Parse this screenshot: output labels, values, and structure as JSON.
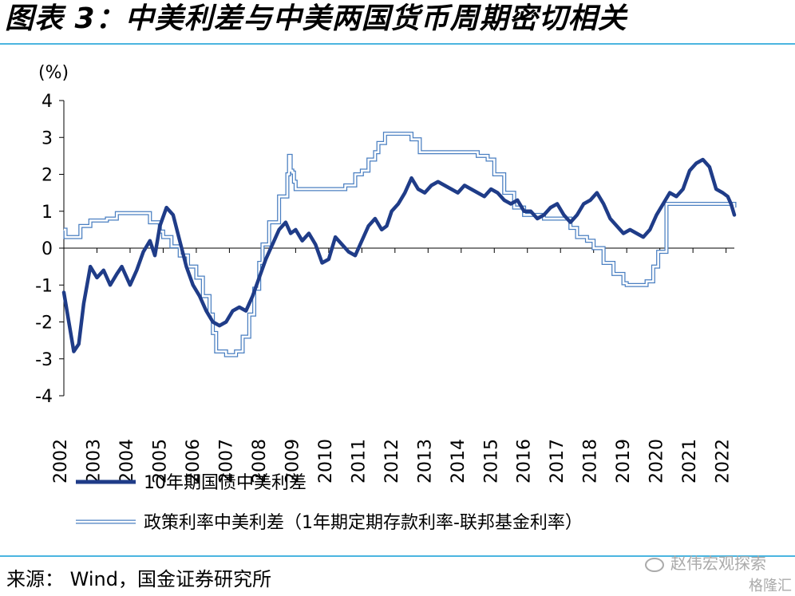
{
  "figure": {
    "title": "图表 3：中美利差与中美两国货币周期密切相关",
    "source": "来源：  Wind，国金证券研究所",
    "watermark": "赵伟宏观探索",
    "watermark2": "格隆汇"
  },
  "colors": {
    "rule": "#4bb5e0",
    "axis": "#000000",
    "bond_line": "#1f3c88",
    "policy_outline": "#4a7fc1",
    "policy_fill": "#ffffff"
  },
  "chart_data": {
    "type": "line",
    "unit_label": "(%)",
    "ylim": [
      -4,
      4
    ],
    "yticks": [
      4,
      3,
      2,
      1,
      0,
      -1,
      -2,
      -3,
      -4
    ],
    "xlim": [
      2002.0,
      2022.25
    ],
    "xticks": [
      "2002",
      "2003",
      "2004",
      "2005",
      "2006",
      "2007",
      "2008",
      "2009",
      "2010",
      "2011",
      "2012",
      "2013",
      "2014",
      "2015",
      "2016",
      "2017",
      "2018",
      "2019",
      "2020",
      "2021",
      "2022"
    ],
    "series": [
      {
        "name": "10年期国债中美利差",
        "style": "thick",
        "x": [
          2002.0,
          2002.15,
          2002.3,
          2002.45,
          2002.6,
          2002.8,
          2003.0,
          2003.2,
          2003.4,
          2003.6,
          2003.75,
          2004.0,
          2004.2,
          2004.4,
          2004.6,
          2004.75,
          2004.9,
          2005.1,
          2005.3,
          2005.5,
          2005.7,
          2005.9,
          2006.1,
          2006.3,
          2006.5,
          2006.7,
          2006.9,
          2007.1,
          2007.3,
          2007.5,
          2007.7,
          2007.9,
          2008.1,
          2008.3,
          2008.5,
          2008.7,
          2008.85,
          2009.0,
          2009.2,
          2009.4,
          2009.6,
          2009.8,
          2010.0,
          2010.2,
          2010.4,
          2010.6,
          2010.8,
          2011.0,
          2011.2,
          2011.4,
          2011.6,
          2011.75,
          2011.9,
          2012.1,
          2012.3,
          2012.5,
          2012.7,
          2012.9,
          2013.1,
          2013.3,
          2013.5,
          2013.7,
          2013.9,
          2014.1,
          2014.3,
          2014.5,
          2014.7,
          2014.9,
          2015.1,
          2015.3,
          2015.5,
          2015.7,
          2015.9,
          2016.1,
          2016.3,
          2016.5,
          2016.7,
          2016.9,
          2017.1,
          2017.3,
          2017.5,
          2017.7,
          2017.9,
          2018.1,
          2018.3,
          2018.5,
          2018.7,
          2018.9,
          2019.1,
          2019.3,
          2019.5,
          2019.7,
          2019.9,
          2020.1,
          2020.3,
          2020.5,
          2020.7,
          2020.9,
          2021.1,
          2021.3,
          2021.5,
          2021.7,
          2021.9,
          2022.05,
          2022.15,
          2022.25
        ],
        "y": [
          -1.2,
          -2.0,
          -2.8,
          -2.6,
          -1.5,
          -0.5,
          -0.8,
          -0.6,
          -1.0,
          -0.7,
          -0.5,
          -1.0,
          -0.6,
          -0.1,
          0.2,
          -0.2,
          0.6,
          1.1,
          0.9,
          0.2,
          -0.5,
          -1.0,
          -1.3,
          -1.7,
          -2.0,
          -2.1,
          -2.0,
          -1.7,
          -1.6,
          -1.7,
          -1.3,
          -0.8,
          -0.3,
          0.1,
          0.5,
          0.7,
          0.4,
          0.5,
          0.2,
          0.4,
          0.1,
          -0.4,
          -0.3,
          0.3,
          0.1,
          -0.1,
          -0.2,
          0.2,
          0.6,
          0.8,
          0.5,
          0.6,
          1.0,
          1.2,
          1.5,
          1.9,
          1.6,
          1.5,
          1.7,
          1.8,
          1.7,
          1.6,
          1.5,
          1.7,
          1.6,
          1.5,
          1.4,
          1.6,
          1.5,
          1.3,
          1.2,
          1.3,
          1.0,
          1.0,
          0.8,
          0.9,
          1.1,
          1.2,
          0.9,
          0.7,
          0.9,
          1.2,
          1.3,
          1.5,
          1.2,
          0.8,
          0.6,
          0.4,
          0.5,
          0.4,
          0.3,
          0.5,
          0.9,
          1.2,
          1.5,
          1.4,
          1.6,
          2.1,
          2.3,
          2.4,
          2.2,
          1.6,
          1.5,
          1.4,
          1.2,
          0.9
        ]
      },
      {
        "name": "政策利率中美利差（1年期定期存款利率-联邦基金利率）",
        "style": "outline",
        "x": [
          2002.0,
          2002.05,
          2002.4,
          2002.5,
          2002.8,
          2003.0,
          2003.3,
          2003.6,
          2004.0,
          2004.35,
          2004.6,
          2004.9,
          2005.0,
          2005.25,
          2005.5,
          2005.75,
          2006.0,
          2006.2,
          2006.4,
          2006.5,
          2006.6,
          2006.9,
          2007.2,
          2007.4,
          2007.6,
          2007.75,
          2007.9,
          2008.0,
          2008.2,
          2008.5,
          2008.75,
          2008.8,
          2008.85,
          2008.9,
          2008.95,
          2009.0,
          2010.0,
          2010.5,
          2010.8,
          2011.0,
          2011.2,
          2011.4,
          2011.5,
          2011.7,
          2012.0,
          2012.5,
          2012.75,
          2013.0,
          2014.0,
          2014.5,
          2014.8,
          2015.0,
          2015.3,
          2015.6,
          2015.9,
          2016.5,
          2016.9,
          2017.1,
          2017.3,
          2017.5,
          2017.8,
          2018.0,
          2018.3,
          2018.6,
          2018.9,
          2019.0,
          2019.6,
          2019.8,
          2019.95,
          2020.1,
          2020.17,
          2020.2,
          2021.0,
          2022.0,
          2022.25
        ],
        "y": [
          0.5,
          0.3,
          0.3,
          0.6,
          0.75,
          0.75,
          0.8,
          0.95,
          0.95,
          0.95,
          0.7,
          0.45,
          0.3,
          0.05,
          -0.2,
          -0.5,
          -0.8,
          -1.3,
          -1.8,
          -2.3,
          -2.8,
          -2.9,
          -2.8,
          -2.4,
          -1.8,
          -1.1,
          -0.4,
          0.1,
          0.7,
          1.4,
          2.0,
          2.5,
          2.1,
          2.05,
          1.8,
          1.6,
          1.6,
          1.7,
          2.0,
          2.1,
          2.4,
          2.6,
          2.85,
          3.1,
          3.1,
          2.95,
          2.6,
          2.6,
          2.6,
          2.5,
          2.4,
          2.0,
          1.5,
          1.1,
          0.9,
          0.8,
          0.8,
          0.8,
          0.55,
          0.3,
          0.2,
          0.0,
          -0.4,
          -0.7,
          -0.95,
          -1.0,
          -0.9,
          -0.5,
          -0.1,
          -0.1,
          -0.1,
          1.2,
          1.2,
          1.2,
          1.1
        ]
      }
    ]
  }
}
